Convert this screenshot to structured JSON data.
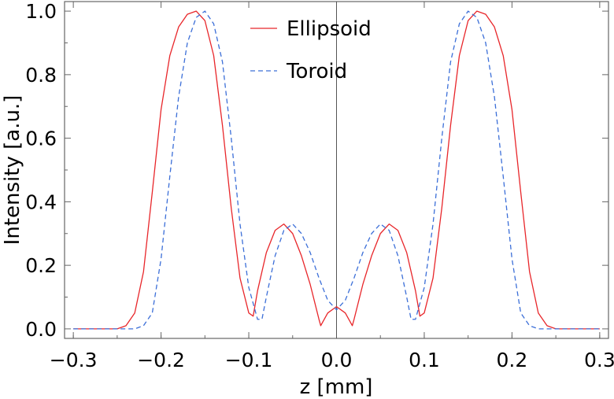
{
  "chart_data": {
    "type": "line",
    "title": "",
    "xlabel": "z [mm]",
    "ylabel": "Intensity [a.u.]",
    "xlim": [
      -0.31,
      0.31
    ],
    "ylim": [
      -0.03,
      1.03
    ],
    "xticks": [
      -0.3,
      -0.2,
      -0.1,
      0.0,
      0.1,
      0.2,
      0.3
    ],
    "xtick_labels": [
      "−0.3",
      "−0.2",
      "−0.1",
      "0.0",
      "0.1",
      "0.2",
      "0.3"
    ],
    "yticks": [
      0.0,
      0.2,
      0.4,
      0.6,
      0.8,
      1.0
    ],
    "ytick_labels": [
      "0.0",
      "0.2",
      "0.4",
      "0.6",
      "0.8",
      "1.0"
    ],
    "zero_line": "x = 0",
    "legend": {
      "position": "top-center",
      "entries": [
        "Ellipsoid",
        "Toroid"
      ]
    },
    "series": [
      {
        "name": "Ellipsoid",
        "color": "#e8262a",
        "style": "solid",
        "x": [
          -0.3,
          -0.25,
          -0.24,
          -0.23,
          -0.22,
          -0.21,
          -0.2,
          -0.19,
          -0.18,
          -0.17,
          -0.16,
          -0.15,
          -0.14,
          -0.13,
          -0.12,
          -0.11,
          -0.1,
          -0.095,
          -0.09,
          -0.08,
          -0.07,
          -0.06,
          -0.05,
          -0.04,
          -0.03,
          -0.02,
          -0.018,
          -0.01,
          0.0,
          0.01,
          0.018,
          0.02,
          0.03,
          0.04,
          0.05,
          0.06,
          0.07,
          0.08,
          0.09,
          0.095,
          0.1,
          0.11,
          0.12,
          0.13,
          0.14,
          0.15,
          0.16,
          0.17,
          0.18,
          0.19,
          0.2,
          0.21,
          0.22,
          0.23,
          0.24,
          0.25,
          0.3
        ],
        "y": [
          0.0,
          0.0,
          0.01,
          0.05,
          0.18,
          0.43,
          0.69,
          0.86,
          0.95,
          0.99,
          1.0,
          0.97,
          0.86,
          0.64,
          0.38,
          0.16,
          0.05,
          0.04,
          0.12,
          0.24,
          0.31,
          0.33,
          0.3,
          0.23,
          0.14,
          0.03,
          0.01,
          0.05,
          0.07,
          0.05,
          0.01,
          0.03,
          0.14,
          0.23,
          0.3,
          0.33,
          0.31,
          0.24,
          0.12,
          0.04,
          0.05,
          0.16,
          0.38,
          0.64,
          0.86,
          0.97,
          1.0,
          0.99,
          0.95,
          0.86,
          0.69,
          0.43,
          0.18,
          0.05,
          0.01,
          0.0,
          0.0
        ]
      },
      {
        "name": "Toroid",
        "color": "#3c6fd8",
        "style": "dashed",
        "x": [
          -0.3,
          -0.23,
          -0.22,
          -0.21,
          -0.2,
          -0.19,
          -0.18,
          -0.17,
          -0.16,
          -0.15,
          -0.14,
          -0.13,
          -0.12,
          -0.11,
          -0.1,
          -0.09,
          -0.085,
          -0.08,
          -0.07,
          -0.06,
          -0.05,
          -0.04,
          -0.03,
          -0.02,
          -0.01,
          0.0,
          0.01,
          0.02,
          0.03,
          0.04,
          0.05,
          0.06,
          0.07,
          0.08,
          0.085,
          0.09,
          0.1,
          0.11,
          0.12,
          0.13,
          0.14,
          0.15,
          0.16,
          0.17,
          0.18,
          0.19,
          0.2,
          0.21,
          0.22,
          0.23,
          0.3
        ],
        "y": [
          0.0,
          0.0,
          0.01,
          0.05,
          0.22,
          0.48,
          0.73,
          0.9,
          0.98,
          1.0,
          0.96,
          0.84,
          0.6,
          0.33,
          0.13,
          0.03,
          0.03,
          0.1,
          0.23,
          0.31,
          0.33,
          0.3,
          0.24,
          0.16,
          0.09,
          0.06,
          0.09,
          0.16,
          0.24,
          0.3,
          0.33,
          0.31,
          0.23,
          0.1,
          0.03,
          0.03,
          0.13,
          0.33,
          0.6,
          0.84,
          0.96,
          1.0,
          0.98,
          0.9,
          0.73,
          0.48,
          0.22,
          0.05,
          0.01,
          0.0,
          0.0
        ]
      }
    ]
  }
}
